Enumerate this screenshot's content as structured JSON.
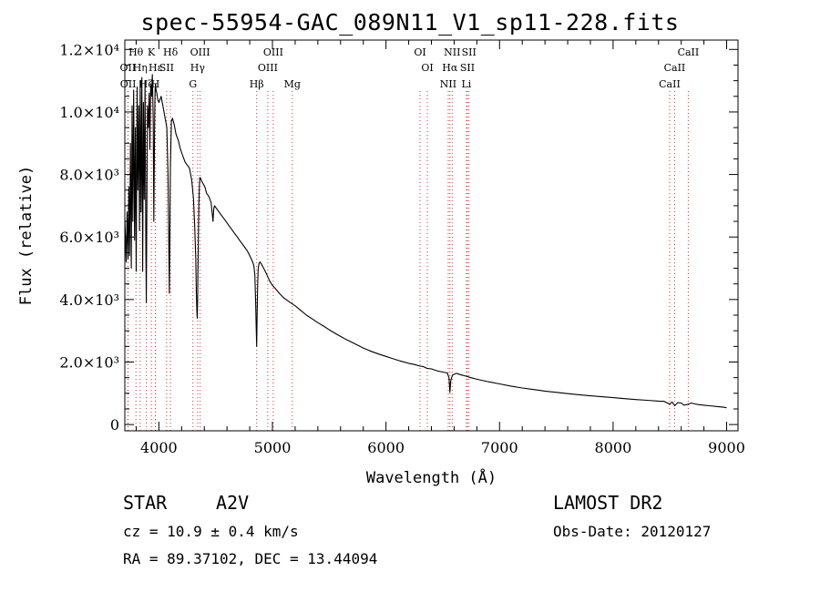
{
  "header": {
    "title": "spec-55954-GAC_089N11_V1_sp11-228.fits"
  },
  "info": {
    "object_type": "STAR",
    "subclass": "A2V",
    "survey": "LAMOST DR2",
    "cz": "cz = 10.9 ± 0.4 km/s",
    "obs_date": "Obs-Date: 20120127",
    "radec": "RA =  89.37102, DEC =  13.44094"
  },
  "chart_data": {
    "type": "line",
    "title": "spec-55954-GAC_089N11_V1_sp11-228.fits",
    "xlabel": "Wavelength (Å)",
    "ylabel": "Flux (relative)",
    "xlim": [
      3700,
      9100
    ],
    "ylim": [
      -200,
      12300
    ],
    "xticks": [
      4000,
      5000,
      6000,
      7000,
      8000,
      9000
    ],
    "ytick_labels": [
      {
        "value": 0,
        "label": "0"
      },
      {
        "value": 2000,
        "label": "2.0×10³"
      },
      {
        "value": 4000,
        "label": "4.0×10³"
      },
      {
        "value": 6000,
        "label": "6.0×10³"
      },
      {
        "value": 8000,
        "label": "8.0×10³"
      },
      {
        "value": 10000,
        "label": "1.0×10⁴"
      },
      {
        "value": 12000,
        "label": "1.2×10⁴"
      }
    ],
    "grid": false,
    "line_colors": {
      "spectrum": "#000000",
      "marker": "#cc3333"
    },
    "series": [
      {
        "x": [
          3700,
          3712,
          3720,
          3728,
          3735,
          3742,
          3750,
          3757,
          3764,
          3771,
          3778,
          3786,
          3793,
          3800,
          3808,
          3815,
          3822,
          3829,
          3836,
          3843,
          3850,
          3857,
          3864,
          3871,
          3878,
          3885,
          3889,
          3893,
          3900,
          3907,
          3914,
          3921,
          3928,
          3935,
          3942,
          3950,
          3955,
          3962,
          3966,
          3970,
          3975,
          3982,
          3990,
          4000,
          4010,
          4020,
          4030,
          4040,
          4050,
          4060,
          4070,
          4080,
          4092,
          4101,
          4110,
          4120,
          4135,
          4150,
          4170,
          4190,
          4210,
          4230,
          4250,
          4270,
          4290,
          4305,
          4315,
          4325,
          4330,
          4335,
          4338,
          4341,
          4344,
          4348,
          4352,
          4356,
          4360,
          4365,
          4375,
          4390,
          4405,
          4420,
          4440,
          4460,
          4471,
          4477,
          4483,
          4490,
          4510,
          4530,
          4550,
          4570,
          4600,
          4630,
          4660,
          4690,
          4720,
          4750,
          4780,
          4800,
          4820,
          4835,
          4845,
          4852,
          4857,
          4861,
          4865,
          4870,
          4875,
          4882,
          4890,
          4900,
          4915,
          4930,
          4950,
          4975,
          5000,
          5030,
          5060,
          5100,
          5150,
          5200,
          5250,
          5300,
          5350,
          5400,
          5450,
          5500,
          5550,
          5600,
          5650,
          5700,
          5750,
          5800,
          5850,
          5900,
          5950,
          6000,
          6050,
          6100,
          6150,
          6200,
          6250,
          6300,
          6330,
          6360,
          6400,
          6450,
          6500,
          6540,
          6555,
          6563,
          6570,
          6585,
          6620,
          6650,
          6700,
          6750,
          6800,
          6900,
          7000,
          7100,
          7200,
          7300,
          7400,
          7500,
          7600,
          7700,
          7800,
          7900,
          8000,
          8100,
          8200,
          8300,
          8400,
          8450,
          8498,
          8520,
          8542,
          8570,
          8600,
          8625,
          8662,
          8690,
          8720,
          8750,
          8800,
          8850,
          8900,
          8960,
          8990,
          9000
        ],
        "y": [
          6600,
          5200,
          6800,
          5300,
          7600,
          5400,
          9000,
          5000,
          10200,
          6500,
          10700,
          5900,
          9500,
          4900,
          10800,
          7500,
          10200,
          6200,
          11000,
          6800,
          11100,
          4900,
          10300,
          7200,
          11000,
          5600,
          3900,
          6600,
          10200,
          9500,
          10600,
          8800,
          10900,
          10500,
          11200,
          9700,
          6500,
          9600,
          10700,
          10900,
          10700,
          10600,
          10400,
          10300,
          10400,
          10500,
          10300,
          10100,
          9900,
          9700,
          9500,
          8000,
          4200,
          8200,
          9700,
          9800,
          9600,
          9300,
          9100,
          8800,
          8600,
          8400,
          8300,
          8200,
          7800,
          7200,
          6400,
          5300,
          4200,
          3600,
          3400,
          4000,
          5000,
          6200,
          7100,
          7600,
          7900,
          7900,
          7800,
          7700,
          7600,
          7400,
          7300,
          7100,
          6700,
          6500,
          6900,
          7000,
          6900,
          6800,
          6700,
          6600,
          6450,
          6300,
          6150,
          6000,
          5850,
          5700,
          5550,
          5400,
          5250,
          5100,
          4800,
          3900,
          3100,
          2500,
          3500,
          4500,
          5000,
          5150,
          5200,
          5150,
          5050,
          4950,
          4800,
          4600,
          4450,
          4330,
          4200,
          4050,
          3920,
          3800,
          3650,
          3500,
          3380,
          3260,
          3150,
          3030,
          2920,
          2820,
          2720,
          2630,
          2540,
          2450,
          2370,
          2300,
          2240,
          2180,
          2120,
          2060,
          2010,
          1960,
          1920,
          1870,
          1850,
          1800,
          1780,
          1720,
          1680,
          1650,
          1500,
          1030,
          1400,
          1580,
          1640,
          1600,
          1550,
          1500,
          1450,
          1370,
          1300,
          1230,
          1170,
          1120,
          1070,
          1030,
          990,
          955,
          920,
          890,
          860,
          830,
          800,
          775,
          750,
          740,
          650,
          720,
          600,
          700,
          690,
          620,
          650,
          690,
          660,
          640,
          620,
          600,
          580,
          560,
          545,
          530
        ]
      }
    ],
    "line_markers": [
      {
        "wl": 3727,
        "label": "OII",
        "row": 2
      },
      {
        "wl": 3729,
        "label": "OII",
        "row": 3
      },
      {
        "wl": 3798,
        "label": "Hθ",
        "row": 1
      },
      {
        "wl": 3835,
        "label": "Hη",
        "row": 2
      },
      {
        "wl": 3889,
        "label": "Hζ",
        "row": 3
      },
      {
        "wl": 3934,
        "label": "K",
        "row": 1
      },
      {
        "wl": 3969,
        "label": "H",
        "row": 3
      },
      {
        "wl": 3970,
        "label": "Hε",
        "row": 2
      },
      {
        "wl": 4068,
        "label": "SII",
        "row": 2
      },
      {
        "wl": 4102,
        "label": "Hδ",
        "row": 1
      },
      {
        "wl": 4300,
        "label": "G",
        "row": 3
      },
      {
        "wl": 4341,
        "label": "Hγ",
        "row": 2
      },
      {
        "wl": 4363,
        "label": "OIII",
        "row": 1
      },
      {
        "wl": 4861,
        "label": "Hβ",
        "row": 3
      },
      {
        "wl": 4959,
        "label": "OIII",
        "row": 2
      },
      {
        "wl": 5007,
        "label": "OIII",
        "row": 1
      },
      {
        "wl": 5175,
        "label": "Mg",
        "row": 3
      },
      {
        "wl": 6300,
        "label": "OI",
        "row": 1
      },
      {
        "wl": 6364,
        "label": "OI",
        "row": 2
      },
      {
        "wl": 6548,
        "label": "NII",
        "row": 3
      },
      {
        "wl": 6563,
        "label": "Hα",
        "row": 2
      },
      {
        "wl": 6583,
        "label": "NII",
        "row": 1
      },
      {
        "wl": 6708,
        "label": "Li",
        "row": 3
      },
      {
        "wl": 6717,
        "label": "SII",
        "row": 2
      },
      {
        "wl": 6731,
        "label": "SII",
        "row": 1
      },
      {
        "wl": 8498,
        "label": "CaII",
        "row": 3
      },
      {
        "wl": 8542,
        "label": "CaII",
        "row": 2
      },
      {
        "wl": 8662,
        "label": "CaII",
        "row": 1
      }
    ]
  }
}
